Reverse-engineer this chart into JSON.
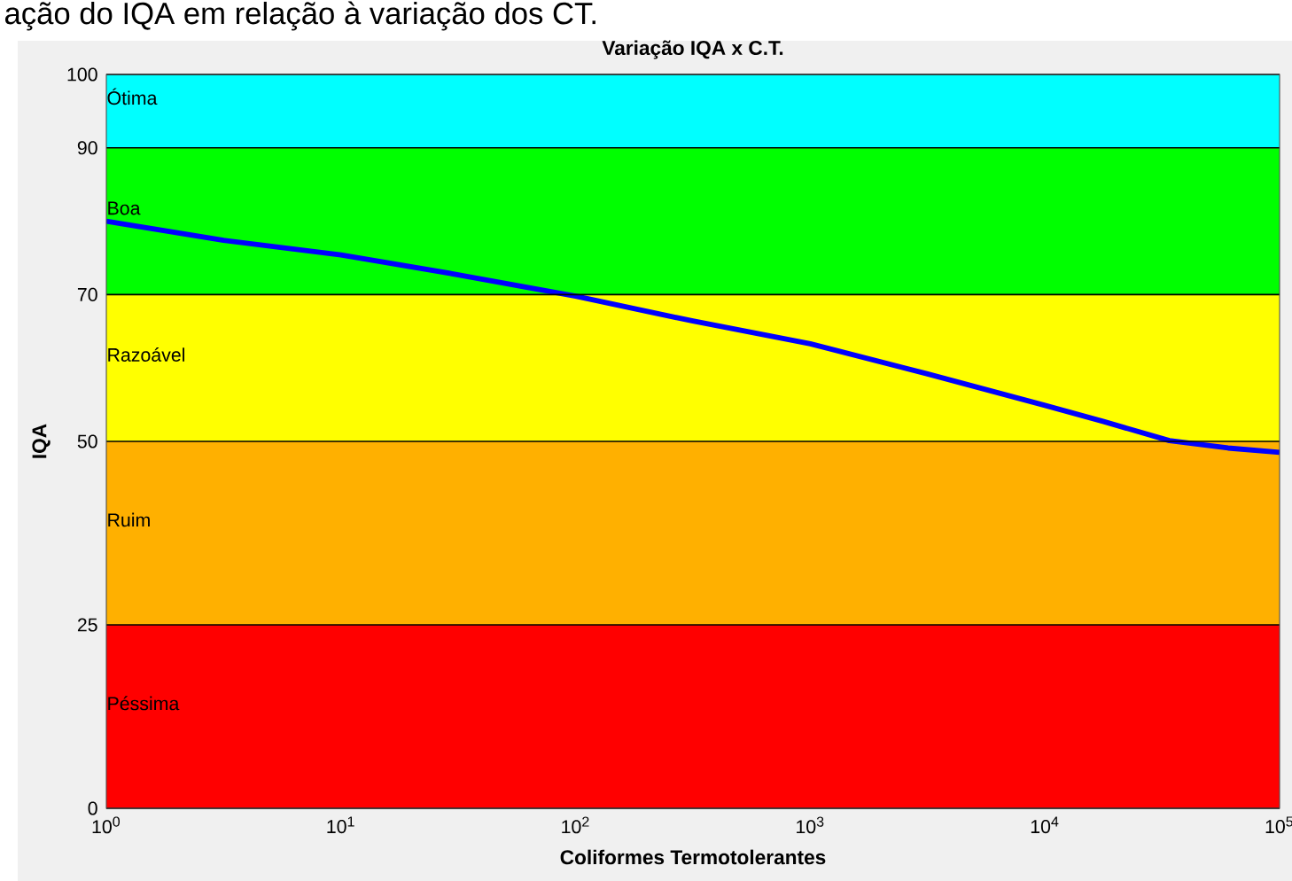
{
  "chart_data": {
    "type": "line",
    "title": "Variação IQA x C.T.",
    "xlabel": "Coliformes Termotolerantes",
    "ylabel": "IQA",
    "annotations": [
      "ação do IQA em relação à variação dos CT."
    ],
    "log": "x",
    "xlim": [
      1,
      100000
    ],
    "ylim": [
      0,
      100
    ],
    "xticks": [
      {
        "value": 1,
        "label": "10$^{0}$"
      },
      {
        "value": 10,
        "label": "10$^{1}$"
      },
      {
        "value": 100,
        "label": "10$^{2}$"
      },
      {
        "value": 1000,
        "label": "10$^{3}$"
      },
      {
        "value": 10000,
        "label": "10$^{4}$"
      },
      {
        "value": 100000,
        "label": "10$^{5}$"
      }
    ],
    "yticks": [
      0,
      25,
      50,
      70,
      90,
      100
    ],
    "bands": [
      {
        "axis": "y",
        "from": 90,
        "to": 100,
        "label": "Ótima",
        "color": "#00ffff"
      },
      {
        "axis": "y",
        "from": 70,
        "to": 90,
        "label": "Boa",
        "color": "#00ff00"
      },
      {
        "axis": "y",
        "from": 50,
        "to": 70,
        "label": "Razoável",
        "color": "#ffff00"
      },
      {
        "axis": "y",
        "from": 25,
        "to": 50,
        "label": "Ruim",
        "color": "#ffb000"
      },
      {
        "axis": "y",
        "from": 0,
        "to": 25,
        "label": "Péssima",
        "color": "#ff0000"
      }
    ],
    "x": [
      1,
      3.16,
      10,
      31.6,
      100,
      316,
      1000,
      3160,
      10000,
      17800,
      33900,
      60300,
      100000
    ],
    "series": [
      {
        "color": "#0000ff",
        "values": [
          80,
          77.4,
          75.4,
          72.7,
          69.8,
          66.4,
          63.3,
          59.2,
          54.9,
          52.7,
          50.1,
          49.1,
          48.5
        ]
      }
    ],
    "legend": false,
    "grid": "y",
    "marker": "none",
    "line_style": "solid"
  }
}
